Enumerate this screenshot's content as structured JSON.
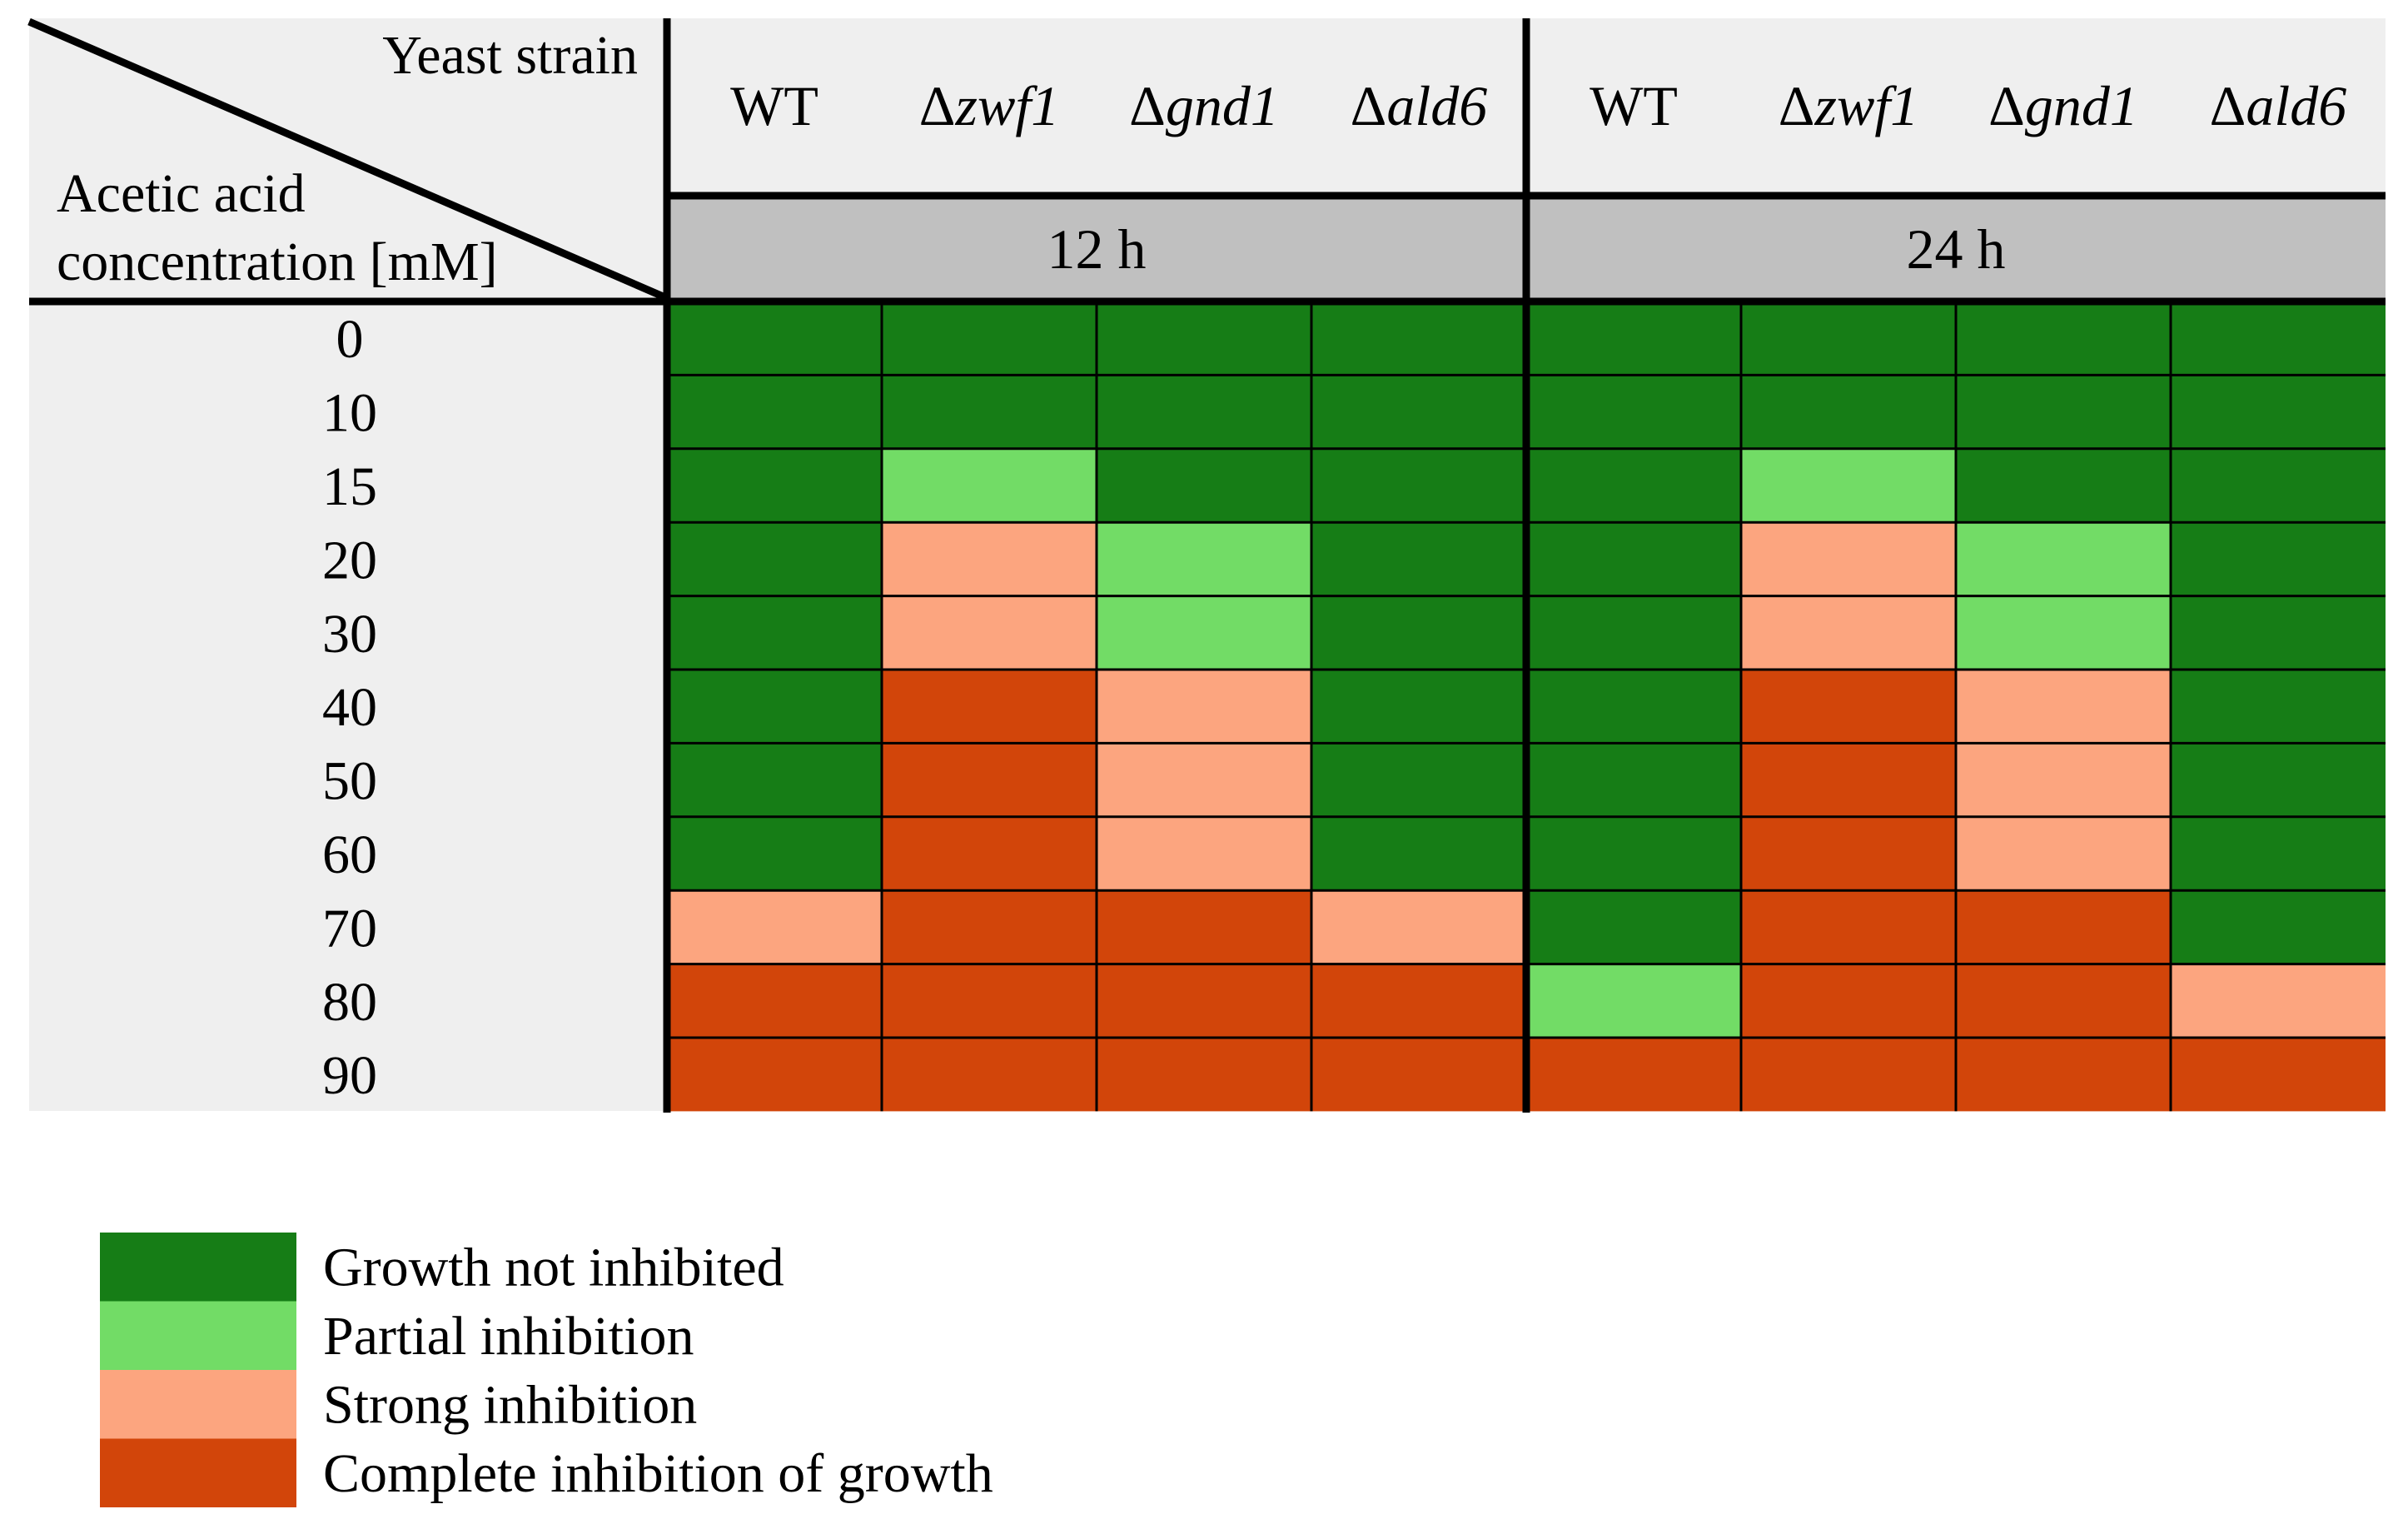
{
  "chart_data": {
    "type": "heatmap",
    "corner": {
      "column_header_label": "Yeast strain",
      "row_header_label_lines": [
        "Acetic acid",
        "concentration [mM]"
      ]
    },
    "groups": [
      {
        "label": "12 h",
        "strains": [
          {
            "prefix": "",
            "name": "WT"
          },
          {
            "prefix": "Δ",
            "name": "zwf1"
          },
          {
            "prefix": "Δ",
            "name": "gnd1"
          },
          {
            "prefix": "Δ",
            "name": "ald6"
          }
        ]
      },
      {
        "label": "24 h",
        "strains": [
          {
            "prefix": "",
            "name": "WT"
          },
          {
            "prefix": "Δ",
            "name": "zwf1"
          },
          {
            "prefix": "Δ",
            "name": "gnd1"
          },
          {
            "prefix": "Δ",
            "name": "ald6"
          }
        ]
      }
    ],
    "rows": [
      "0",
      "10",
      "15",
      "20",
      "30",
      "40",
      "50",
      "60",
      "70",
      "80",
      "90"
    ],
    "values": [
      [
        0,
        0,
        0,
        0,
        0,
        0,
        0,
        0
      ],
      [
        0,
        0,
        0,
        0,
        0,
        0,
        0,
        0
      ],
      [
        0,
        1,
        0,
        0,
        0,
        1,
        0,
        0
      ],
      [
        0,
        2,
        1,
        0,
        0,
        2,
        1,
        0
      ],
      [
        0,
        2,
        1,
        0,
        0,
        2,
        1,
        0
      ],
      [
        0,
        3,
        2,
        0,
        0,
        3,
        2,
        0
      ],
      [
        0,
        3,
        2,
        0,
        0,
        3,
        2,
        0
      ],
      [
        0,
        3,
        2,
        0,
        0,
        3,
        2,
        0
      ],
      [
        2,
        3,
        3,
        2,
        0,
        3,
        3,
        0
      ],
      [
        3,
        3,
        3,
        3,
        1,
        3,
        3,
        2
      ],
      [
        3,
        3,
        3,
        3,
        3,
        3,
        3,
        3
      ]
    ],
    "legend": [
      {
        "level": 0,
        "label": "Growth not inhibited",
        "color": "#167d16"
      },
      {
        "level": 1,
        "label": "Partial inhibition",
        "color": "#72dc66"
      },
      {
        "level": 2,
        "label": "Strong inhibition",
        "color": "#fca57f"
      },
      {
        "level": 3,
        "label": "Complete inhibition of growth",
        "color": "#d2450a"
      }
    ],
    "colors": {
      "header_background": "#efefef",
      "time_band": "#c0c0c0",
      "grid_lines": "#000000"
    }
  }
}
